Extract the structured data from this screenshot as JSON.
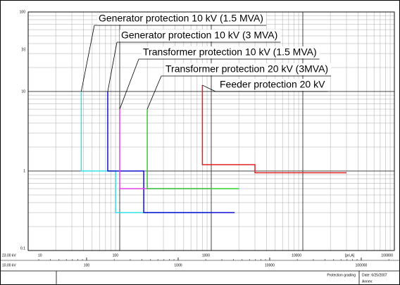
{
  "chart_data": {
    "type": "line",
    "log_x": true,
    "log_y": true,
    "grid": true,
    "ylabel": "[s]",
    "xlabel": "[pri,A]",
    "x_voltage": "23.00 kV",
    "x2_voltage": "10.00 kV",
    "xlim": [
      10,
      100000
    ],
    "xticks": [
      10,
      100,
      1000,
      10000,
      100000
    ],
    "ylim": [
      0.1,
      100
    ],
    "yticks": [
      0.1,
      1,
      10,
      100
    ],
    "x2lim": [
      23,
      230000
    ],
    "x2ticks": [
      100,
      1000,
      10000,
      100000
    ],
    "series": [
      {
        "name": "Generator protection 10 kV (1.5 MVA)",
        "color": "#33e0e8",
        "x": [
          38,
          38,
          90,
          90,
          1000
        ],
        "values": [
          10,
          1,
          1,
          0.3,
          0.3
        ]
      },
      {
        "name": "Generator protection 10 kV (3 MVA)",
        "color": "#1010d0",
        "x": [
          74,
          74,
          183,
          183,
          1800
        ],
        "values": [
          10,
          1,
          1,
          0.3,
          0.3
        ]
      },
      {
        "name": "Transformer protection 10 kV (1.5 MVA)",
        "color": "#e040e8",
        "x": [
          100,
          100,
          1000
        ],
        "values": [
          6,
          0.6,
          0.6
        ]
      },
      {
        "name": "Transformer protection 20 kV (3MVA)",
        "color": "#30d030",
        "x": [
          200,
          200,
          2000
        ],
        "values": [
          6,
          0.6,
          0.6
        ]
      },
      {
        "name": "Feeder protection 20 kV",
        "color": "#e02020",
        "x": [
          800,
          800,
          3000,
          3000,
          30000
        ],
        "values": [
          12,
          1.2,
          1.2,
          0.95,
          0.95
        ]
      }
    ],
    "footer": {
      "title": "Protection grading",
      "date": "Date: 6/25/2007",
      "annex": "Annex:"
    }
  }
}
